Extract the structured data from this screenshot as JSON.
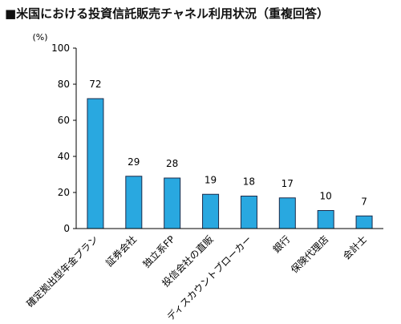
{
  "title": "■米国における投資信託販売チャネル利用状況（重複回答）",
  "chart_data": {
    "type": "bar",
    "title": "■米国における投資信託販売チャネル利用状況（重複回答）",
    "ylabel": "(%)",
    "xlabel": "",
    "ylim": [
      0,
      100
    ],
    "yticks": [
      0,
      20,
      40,
      60,
      80,
      100
    ],
    "grid": false,
    "bar_color": "#29a8e0",
    "categories": [
      "確定拠出型年金プラン",
      "証券会社",
      "独立系FP",
      "投信会社の直販",
      "ディスカウントブローカー",
      "銀行",
      "保険代理店",
      "会計士"
    ],
    "values": [
      72,
      29,
      28,
      19,
      18,
      17,
      10,
      7
    ],
    "data_labels": [
      "72",
      "29",
      "28",
      "19",
      "18",
      "17",
      "10",
      "7"
    ]
  }
}
